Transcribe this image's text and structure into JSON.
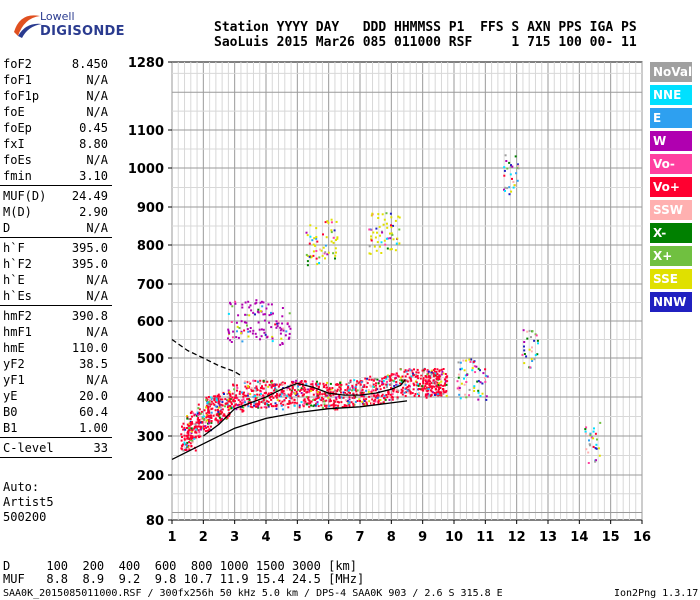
{
  "logo": {
    "line1": "Lowell",
    "line2": "DIGISONDE"
  },
  "header": {
    "line1": "Station YYYY DAY   DDD HHMMSS P1  FFS S AXN PPS IGA PS",
    "line2": "SaoLuis 2015 Mar26 085 011000 RSF     1 715 100 00- 11"
  },
  "params": [
    {
      "group": [
        {
          "key": "foF2",
          "value": "8.450"
        },
        {
          "key": "foF1",
          "value": "N/A"
        },
        {
          "key": "foF1p",
          "value": "N/A"
        },
        {
          "key": "foE",
          "value": "N/A"
        },
        {
          "key": "foEp",
          "value": "0.45"
        },
        {
          "key": "fxI",
          "value": "8.80"
        },
        {
          "key": "foEs",
          "value": "N/A"
        },
        {
          "key": "fmin",
          "value": "3.10"
        }
      ]
    },
    {
      "group": [
        {
          "key": "MUF(D)",
          "value": "24.49"
        },
        {
          "key": "M(D)",
          "value": "2.90"
        },
        {
          "key": "D",
          "value": "N/A"
        }
      ]
    },
    {
      "group": [
        {
          "key": "h`F",
          "value": "395.0"
        },
        {
          "key": "h`F2",
          "value": "395.0"
        },
        {
          "key": "h`E",
          "value": "N/A"
        },
        {
          "key": "h`Es",
          "value": "N/A"
        }
      ]
    },
    {
      "group": [
        {
          "key": "hmF2",
          "value": "390.8"
        },
        {
          "key": "hmF1",
          "value": "N/A"
        },
        {
          "key": "hmE",
          "value": "110.0"
        },
        {
          "key": "yF2",
          "value": "38.5"
        },
        {
          "key": "yF1",
          "value": "N/A"
        },
        {
          "key": "yE",
          "value": "20.0"
        },
        {
          "key": "B0",
          "value": "60.4"
        },
        {
          "key": "B1",
          "value": "1.00"
        }
      ]
    },
    {
      "group": [
        {
          "key": "C-level",
          "value": "33"
        }
      ]
    }
  ],
  "auto": {
    "label": "Auto:",
    "artist": "Artist5",
    "code": "500200"
  },
  "legend": [
    {
      "label": "NoVal",
      "color": "#a0a0a0"
    },
    {
      "label": "NNE",
      "color": "#00e0ff"
    },
    {
      "label": "E",
      "color": "#2ea0f0"
    },
    {
      "label": "W",
      "color": "#b000b0"
    },
    {
      "label": "Vo-",
      "color": "#ff40a0"
    },
    {
      "label": "Vo+",
      "color": "#ff0030"
    },
    {
      "label": "SSW",
      "color": "#ffb0b0"
    },
    {
      "label": "X-",
      "color": "#008000"
    },
    {
      "label": "X+",
      "color": "#70c040"
    },
    {
      "label": "SSE",
      "color": "#e0e000"
    },
    {
      "label": "NNW",
      "color": "#2020c0"
    }
  ],
  "footer": {
    "d_row": "D     100  200  400  600  800 1000 1500 3000 [km]",
    "muf_row": "MUF   8.8  8.9  9.2  9.8 10.7 11.9 15.4 24.5 [MHz]",
    "source": "SAA0K_2015085011000.RSF / 300fx256h 50 kHz 5.0 km / DPS-4 SAA0K 903 / 2.6 S 315.8 E",
    "version": "Ion2Png 1.3.17"
  },
  "chart_data": {
    "type": "scatter",
    "x_ticks": [
      1,
      2,
      3,
      4,
      5,
      6,
      7,
      8,
      9,
      10,
      11,
      12,
      13,
      14,
      15,
      16
    ],
    "y_ticks": [
      80,
      200,
      300,
      400,
      500,
      600,
      700,
      800,
      900,
      1000,
      1100,
      1280
    ],
    "xlim": [
      1,
      16
    ],
    "ylim": [
      80,
      1280
    ],
    "grid": true,
    "legend_position": "right",
    "series": [
      {
        "values": [
          [
            1.5,
            300
          ],
          [
            1.7,
            330
          ],
          [
            2.0,
            350
          ],
          [
            2.3,
            370
          ],
          [
            2.6,
            380
          ],
          [
            3.0,
            400
          ],
          [
            3.5,
            410
          ],
          [
            4.0,
            410
          ],
          [
            4.5,
            405
          ],
          [
            5.0,
            410
          ],
          [
            5.5,
            410
          ],
          [
            6.0,
            405
          ],
          [
            6.5,
            410
          ],
          [
            7.0,
            415
          ],
          [
            7.5,
            420
          ],
          [
            8.0,
            430
          ],
          [
            8.5,
            440
          ],
          [
            9.0,
            440
          ],
          [
            9.3,
            435
          ],
          [
            9.5,
            440
          ]
        ]
      },
      {
        "values": [
          [
            3.0,
            600
          ],
          [
            3.5,
            610
          ],
          [
            4.0,
            600
          ],
          [
            4.5,
            590
          ]
        ]
      },
      {
        "values": [
          [
            5.5,
            800
          ],
          [
            6.0,
            820
          ],
          [
            7.5,
            830
          ],
          [
            8.0,
            840
          ]
        ]
      },
      {
        "values": [
          [
            10.3,
            450
          ],
          [
            10.8,
            440
          ],
          [
            11.8,
            990
          ],
          [
            12.4,
            530
          ],
          [
            14.4,
            285
          ]
        ]
      }
    ],
    "curves": [
      {
        "values": [
          [
            1.0,
            240
          ],
          [
            2.0,
            280
          ],
          [
            3.0,
            320
          ],
          [
            4.0,
            345
          ],
          [
            5.0,
            360
          ],
          [
            6.0,
            370
          ],
          [
            7.0,
            375
          ],
          [
            8.0,
            385
          ],
          [
            8.5,
            390
          ]
        ]
      },
      {
        "values": [
          [
            1.0,
            550
          ],
          [
            1.5,
            520
          ],
          [
            2.0,
            500
          ],
          [
            2.5,
            480
          ],
          [
            3.0,
            465
          ],
          [
            3.2,
            455
          ]
        ]
      },
      {
        "values": [
          [
            2.0,
            300
          ],
          [
            2.5,
            330
          ],
          [
            3.0,
            370
          ],
          [
            3.5,
            385
          ],
          [
            4.0,
            400
          ],
          [
            4.5,
            420
          ],
          [
            5.0,
            435
          ],
          [
            5.5,
            425
          ],
          [
            6.0,
            410
          ],
          [
            6.5,
            405
          ],
          [
            7.0,
            405
          ],
          [
            7.5,
            410
          ],
          [
            8.0,
            420
          ],
          [
            8.3,
            430
          ],
          [
            8.45,
            445
          ]
        ]
      }
    ]
  }
}
